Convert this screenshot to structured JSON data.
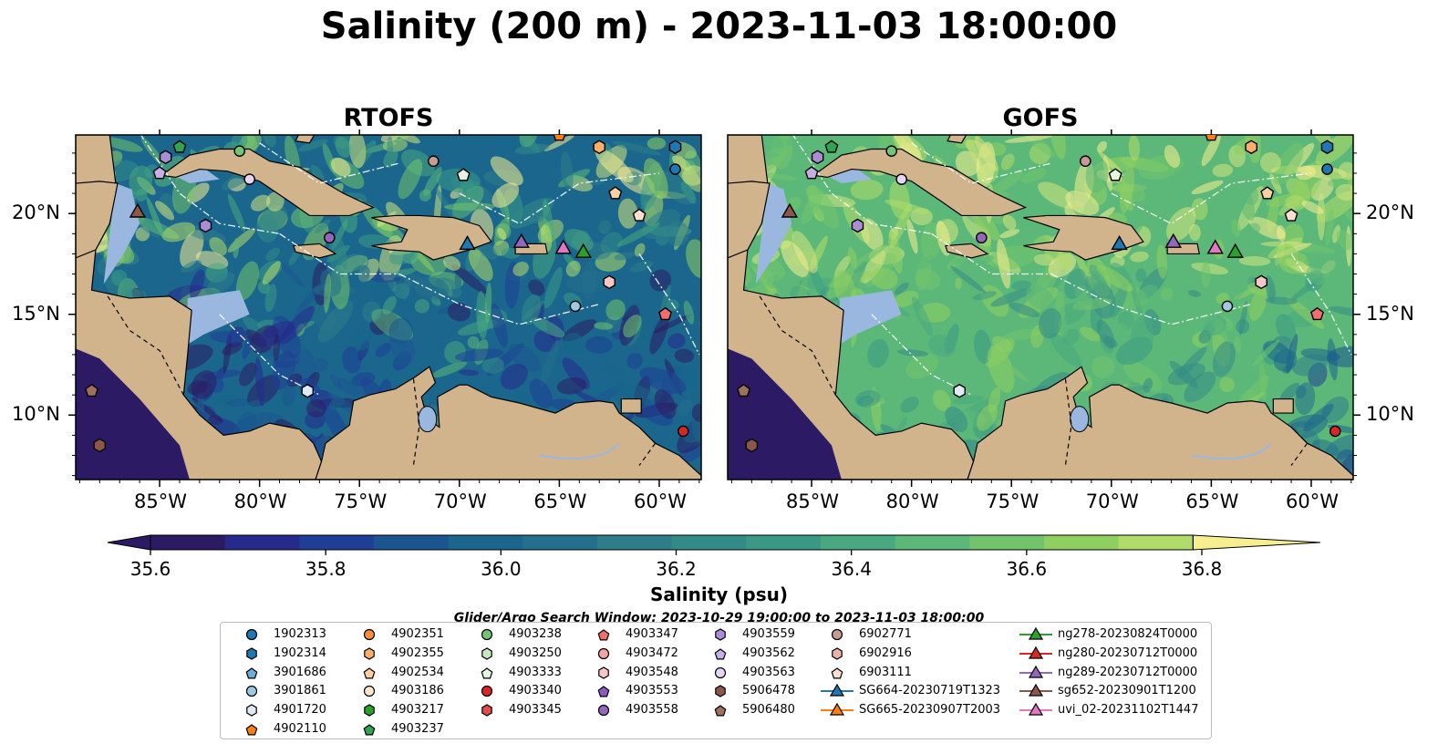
{
  "title": "Salinity (200 m) - 2023-11-03 18:00:00",
  "panels": [
    {
      "title": "RTOFS"
    },
    {
      "title": "GOFS"
    }
  ],
  "axes": {
    "lon_labels": [
      "85°W",
      "80°W",
      "75°W",
      "70°W",
      "65°W",
      "60°W"
    ],
    "lat_labels": [
      "20°N",
      "15°N",
      "10°N"
    ]
  },
  "colorbar": {
    "label": "Salinity (psu)",
    "tick_labels": [
      "35.6",
      "35.8",
      "36.0",
      "36.2",
      "36.4",
      "36.6",
      "36.8"
    ],
    "range": [
      35.55,
      36.9
    ],
    "colors": [
      "#2c1b64",
      "#262a8c",
      "#1f3f96",
      "#1b5590",
      "#1a668c",
      "#246f8c",
      "#2d7d8a",
      "#338b87",
      "#3a9985",
      "#48a87f",
      "#5cb878",
      "#72c46c",
      "#8fcf61",
      "#b2dc6a",
      "#d5e67e",
      "#f7ee90"
    ]
  },
  "search_window": "Glider/Argo Search Window: 2023-10-29 19:00:00 to 2023-11-03 18:00:00",
  "legend": [
    {
      "id": "1902313",
      "marker": "circle",
      "color": "#1f77b4"
    },
    {
      "id": "1902314",
      "marker": "hexagon",
      "color": "#1f77b4"
    },
    {
      "id": "3901686",
      "marker": "pentagon",
      "color": "#6baed6"
    },
    {
      "id": "3901861",
      "marker": "circle",
      "color": "#9ecae1"
    },
    {
      "id": "4901720",
      "marker": "hexagon",
      "color": "#deebf7"
    },
    {
      "id": "4902110",
      "marker": "pentagon",
      "color": "#ff7f0e"
    },
    {
      "id": "4902351",
      "marker": "circle",
      "color": "#fd8d3c"
    },
    {
      "id": "4902355",
      "marker": "hexagon",
      "color": "#fdae6b"
    },
    {
      "id": "4902534",
      "marker": "pentagon",
      "color": "#fdd0a2"
    },
    {
      "id": "4903186",
      "marker": "circle",
      "color": "#fee6ce"
    },
    {
      "id": "4903217",
      "marker": "hexagon",
      "color": "#2ca02c"
    },
    {
      "id": "4903237",
      "marker": "pentagon",
      "color": "#31a354"
    },
    {
      "id": "4903238",
      "marker": "circle",
      "color": "#74c476"
    },
    {
      "id": "4903250",
      "marker": "hexagon",
      "color": "#c7e9c0"
    },
    {
      "id": "4903333",
      "marker": "pentagon",
      "color": "#e5f5e0"
    },
    {
      "id": "4903340",
      "marker": "circle",
      "color": "#d62728"
    },
    {
      "id": "4903345",
      "marker": "hexagon",
      "color": "#e34a4a"
    },
    {
      "id": "4903347",
      "marker": "pentagon",
      "color": "#f46d6d"
    },
    {
      "id": "4903472",
      "marker": "circle",
      "color": "#f4a3a3"
    },
    {
      "id": "4903548",
      "marker": "hexagon",
      "color": "#f7c6c6"
    },
    {
      "id": "4903553",
      "marker": "pentagon",
      "color": "#8a5cc2"
    },
    {
      "id": "4903558",
      "marker": "circle",
      "color": "#9467bd"
    },
    {
      "id": "4903559",
      "marker": "hexagon",
      "color": "#a98ed3"
    },
    {
      "id": "4903562",
      "marker": "pentagon",
      "color": "#c5b0e6"
    },
    {
      "id": "4903563",
      "marker": "circle",
      "color": "#e6d5f5"
    },
    {
      "id": "5906478",
      "marker": "hexagon",
      "color": "#8c564b"
    },
    {
      "id": "5906480",
      "marker": "pentagon",
      "color": "#a0705f"
    },
    {
      "id": "6902771",
      "marker": "circle",
      "color": "#c49c94"
    },
    {
      "id": "6902916",
      "marker": "hexagon",
      "color": "#e8b4a8"
    },
    {
      "id": "6903111",
      "marker": "pentagon",
      "color": "#fde0d0"
    },
    {
      "id": "SG664-20230719T1323",
      "marker": "triangle-line",
      "color": "#1f77b4"
    },
    {
      "id": "SG665-20230907T2003",
      "marker": "triangle-line",
      "color": "#ff7f0e"
    },
    {
      "id": "ng278-20230824T0000",
      "marker": "triangle-line",
      "color": "#2ca02c"
    },
    {
      "id": "ng280-20230712T0000",
      "marker": "triangle-line",
      "color": "#d62728"
    },
    {
      "id": "ng289-20230712T0000",
      "marker": "triangle-line",
      "color": "#9467bd"
    },
    {
      "id": "sg652-20230901T1200",
      "marker": "triangle-line",
      "color": "#8c564b"
    },
    {
      "id": "uvi_02-20231102T1447",
      "marker": "triangle-line",
      "color": "#e377c2"
    }
  ],
  "colors": {
    "land": "#d2b48c",
    "shelf": "#9ab7e0",
    "deep_pacific": "#2c1b64"
  }
}
